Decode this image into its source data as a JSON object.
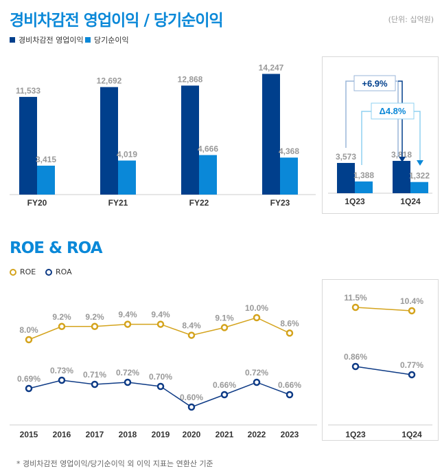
{
  "colors": {
    "op": "#003f8c",
    "net": "#0a88d8",
    "roe": "#d4a31c",
    "roa": "#0d3a85",
    "label": "#999999",
    "axis": "#333333"
  },
  "section1": {
    "title": "경비차감전 영업이익 / 당기순이익",
    "unit": "(단위: 십억원)",
    "legend": [
      "경비차감전 영업이익",
      "당기순이익"
    ]
  },
  "section2": {
    "title": "ROE & ROA",
    "legend": [
      "ROE",
      "ROA"
    ]
  },
  "footnote": "* 경비차감전 영업이익/당기순이익 외 이익 지표는 연환산 기준",
  "chart_data": [
    {
      "type": "bar",
      "categories": [
        "FY20",
        "FY21",
        "FY22",
        "FY23"
      ],
      "series": [
        {
          "name": "경비차감전 영업이익",
          "values": [
            11533,
            12692,
            12868,
            14247
          ],
          "labels": [
            "11,533",
            "12,692",
            "12,868",
            "14,247"
          ]
        },
        {
          "name": "당기순이익",
          "values": [
            3415,
            4019,
            4666,
            4368
          ],
          "labels": [
            "3,415",
            "4,019",
            "4,666",
            "4,368"
          ]
        }
      ]
    },
    {
      "type": "bar",
      "categories": [
        "1Q23",
        "1Q24"
      ],
      "series": [
        {
          "name": "경비차감전 영업이익",
          "values": [
            3573,
            3818
          ],
          "labels": [
            "3,573",
            "3,818"
          ]
        },
        {
          "name": "당기순이익",
          "values": [
            1388,
            1322
          ],
          "labels": [
            "1,388",
            "1,322"
          ]
        }
      ],
      "annotations": [
        "+6.9%",
        "Δ4.8%"
      ]
    },
    {
      "type": "line",
      "categories": [
        "2015",
        "2016",
        "2017",
        "2018",
        "2019",
        "2020",
        "2021",
        "2022",
        "2023"
      ],
      "series": [
        {
          "name": "ROE",
          "values": [
            8.0,
            9.2,
            9.2,
            9.4,
            9.4,
            8.4,
            9.1,
            10.0,
            8.6
          ],
          "labels": [
            "8.0%",
            "9.2%",
            "9.2%",
            "9.4%",
            "9.4%",
            "8.4%",
            "9.1%",
            "10.0%",
            "8.6%"
          ]
        },
        {
          "name": "ROA",
          "values": [
            0.69,
            0.73,
            0.71,
            0.72,
            0.7,
            0.6,
            0.66,
            0.72,
            0.66
          ],
          "labels": [
            "0.69%",
            "0.73%",
            "0.71%",
            "0.72%",
            "0.70%",
            "0.60%",
            "0.66%",
            "0.72%",
            "0.66%"
          ]
        }
      ]
    },
    {
      "type": "line",
      "categories": [
        "1Q23",
        "1Q24"
      ],
      "series": [
        {
          "name": "ROE",
          "values": [
            11.5,
            10.4
          ],
          "labels": [
            "11.5%",
            "10.4%"
          ]
        },
        {
          "name": "ROA",
          "values": [
            0.86,
            0.77
          ],
          "labels": [
            "0.86%",
            "0.77%"
          ]
        }
      ]
    }
  ]
}
